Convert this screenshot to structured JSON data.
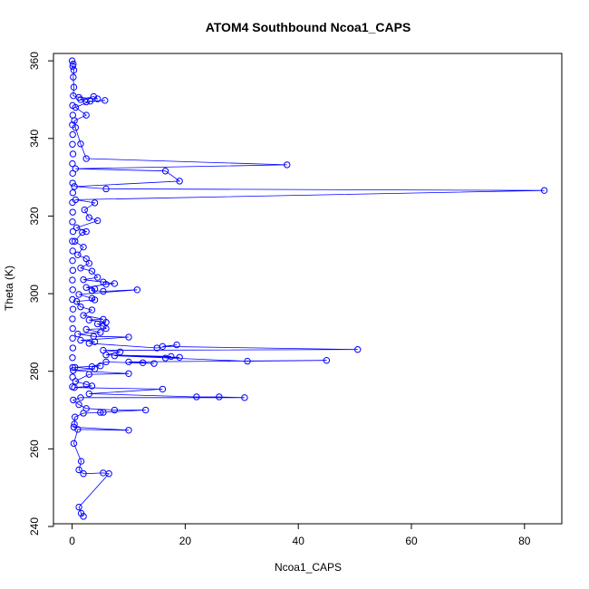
{
  "chart_data": {
    "type": "line",
    "title": "ATOM4 Southbound Ncoa1_CAPS",
    "xlabel": "Ncoa1_CAPS",
    "ylabel": "Theta (K)",
    "xlim": [
      -3.3,
      86.6
    ],
    "ylim": [
      240.7,
      361.9
    ],
    "x_ticks": [
      0,
      20,
      40,
      60,
      80
    ],
    "y_ticks": [
      240,
      260,
      280,
      300,
      320,
      340,
      360
    ],
    "marker": "open-circle",
    "connected": true,
    "grid": false,
    "series": [
      {
        "color": "#0000ff",
        "points": [
          [
            2.0,
            242.6
          ],
          [
            1.6,
            243.4
          ],
          [
            1.2,
            245.0
          ],
          [
            6.5,
            253.6
          ],
          [
            5.5,
            253.8
          ],
          [
            2.0,
            253.6
          ],
          [
            1.2,
            254.6
          ],
          [
            1.6,
            256.8
          ],
          [
            0.3,
            261.4
          ],
          [
            1.0,
            265.0
          ],
          [
            10.0,
            264.8
          ],
          [
            0.3,
            265.6
          ],
          [
            0.4,
            266.4
          ],
          [
            0.5,
            268.2
          ],
          [
            2.0,
            269.2
          ],
          [
            5.5,
            269.4
          ],
          [
            5.0,
            269.4
          ],
          [
            13.0,
            270.0
          ],
          [
            7.5,
            270.0
          ],
          [
            2.5,
            270.4
          ],
          [
            1.2,
            271.4
          ],
          [
            0.2,
            272.6
          ],
          [
            1.5,
            273.2
          ],
          [
            30.5,
            273.2
          ],
          [
            26.0,
            273.4
          ],
          [
            22.0,
            273.4
          ],
          [
            3.0,
            274.2
          ],
          [
            16.0,
            275.4
          ],
          [
            0.4,
            275.8
          ],
          [
            3.5,
            276.2
          ],
          [
            2.5,
            276.6
          ],
          [
            0.6,
            277.4
          ],
          [
            3.0,
            279.2
          ],
          [
            10.0,
            279.4
          ],
          [
            0.2,
            280.2
          ],
          [
            4.0,
            280.6
          ],
          [
            0.5,
            281.0
          ],
          [
            5.0,
            281.4
          ],
          [
            3.5,
            281.2
          ],
          [
            6.0,
            282.4
          ],
          [
            14.5,
            282.0
          ],
          [
            12.5,
            282.2
          ],
          [
            10.0,
            282.4
          ],
          [
            45.0,
            282.8
          ],
          [
            31.0,
            282.6
          ],
          [
            7.5,
            284.0
          ],
          [
            19.0,
            283.6
          ],
          [
            16.5,
            283.4
          ],
          [
            17.5,
            283.8
          ],
          [
            6.0,
            284.2
          ],
          [
            8.5,
            285.0
          ],
          [
            5.5,
            285.4
          ],
          [
            50.5,
            285.6
          ],
          [
            16.0,
            286.4
          ],
          [
            18.5,
            286.8
          ],
          [
            15.0,
            286.0
          ],
          [
            3.0,
            287.2
          ],
          [
            4.0,
            287.6
          ],
          [
            1.5,
            288.0
          ],
          [
            10.0,
            288.8
          ],
          [
            3.8,
            289.0
          ],
          [
            1.0,
            289.6
          ],
          [
            5.0,
            290.0
          ],
          [
            2.5,
            290.8
          ],
          [
            6.0,
            291.0
          ],
          [
            5.5,
            291.6
          ],
          [
            4.5,
            292.2
          ],
          [
            6.0,
            292.6
          ],
          [
            3.0,
            293.2
          ],
          [
            5.5,
            293.4
          ],
          [
            2.0,
            294.4
          ],
          [
            3.5,
            295.8
          ],
          [
            1.5,
            296.6
          ],
          [
            0.8,
            298.0
          ],
          [
            4.0,
            298.4
          ],
          [
            3.5,
            298.8
          ],
          [
            1.2,
            299.8
          ],
          [
            11.5,
            301.0
          ],
          [
            5.5,
            300.6
          ],
          [
            3.5,
            300.8
          ],
          [
            4.0,
            301.2
          ],
          [
            2.5,
            301.6
          ],
          [
            6.0,
            302.4
          ],
          [
            7.5,
            302.6
          ],
          [
            5.5,
            303.0
          ],
          [
            2.0,
            303.6
          ],
          [
            4.5,
            304.2
          ],
          [
            3.5,
            305.8
          ],
          [
            1.5,
            306.6
          ],
          [
            3.0,
            307.8
          ],
          [
            2.5,
            309.0
          ],
          [
            1.0,
            310.0
          ],
          [
            2.0,
            312.0
          ],
          [
            0.5,
            313.5
          ],
          [
            1.8,
            315.8
          ],
          [
            2.5,
            316.0
          ],
          [
            0.8,
            317.0
          ],
          [
            4.5,
            318.8
          ],
          [
            3.0,
            319.6
          ],
          [
            2.2,
            321.6
          ],
          [
            4.0,
            323.4
          ],
          [
            0.6,
            324.2
          ],
          [
            83.5,
            326.6
          ],
          [
            6.0,
            327.0
          ],
          [
            0.4,
            327.6
          ],
          [
            19.0,
            329.0
          ],
          [
            16.5,
            331.6
          ],
          [
            0.6,
            332.2
          ],
          [
            38.0,
            333.2
          ],
          [
            2.5,
            334.8
          ],
          [
            1.5,
            338.6
          ],
          [
            0.6,
            342.8
          ],
          [
            0.4,
            344.6
          ],
          [
            2.5,
            346.0
          ],
          [
            0.6,
            348.0
          ],
          [
            3.2,
            349.6
          ],
          [
            5.8,
            349.8
          ],
          [
            2.5,
            349.4
          ],
          [
            1.5,
            350.0
          ],
          [
            3.8,
            350.8
          ],
          [
            4.5,
            350.2
          ],
          [
            1.2,
            350.6
          ],
          [
            0.2,
            351.0
          ],
          [
            0.3,
            353.2
          ],
          [
            0.2,
            355.8
          ],
          [
            0.3,
            357.6
          ],
          [
            0.1,
            358.6
          ],
          [
            0.2,
            359.2
          ],
          [
            0.0,
            360.0
          ]
        ],
        "near_zero_points": [
          [
            0.05,
            276.0
          ],
          [
            0.08,
            278.5
          ],
          [
            0.1,
            281.0
          ],
          [
            0.06,
            283.5
          ],
          [
            0.12,
            286.0
          ],
          [
            0.08,
            288.5
          ],
          [
            0.1,
            291.0
          ],
          [
            0.05,
            293.5
          ],
          [
            0.15,
            296.0
          ],
          [
            0.06,
            298.5
          ],
          [
            0.1,
            301.0
          ],
          [
            0.05,
            303.5
          ],
          [
            0.12,
            306.0
          ],
          [
            0.07,
            308.5
          ],
          [
            0.1,
            311.0
          ],
          [
            0.05,
            313.5
          ],
          [
            0.15,
            316.0
          ],
          [
            0.06,
            318.5
          ],
          [
            0.1,
            321.0
          ],
          [
            0.05,
            323.5
          ],
          [
            0.12,
            326.0
          ],
          [
            0.08,
            328.5
          ],
          [
            0.1,
            331.0
          ],
          [
            0.05,
            333.5
          ],
          [
            0.15,
            336.0
          ],
          [
            0.06,
            338.5
          ],
          [
            0.1,
            341.0
          ],
          [
            0.05,
            343.5
          ],
          [
            0.12,
            346.0
          ],
          [
            0.08,
            348.5
          ]
        ]
      }
    ]
  }
}
